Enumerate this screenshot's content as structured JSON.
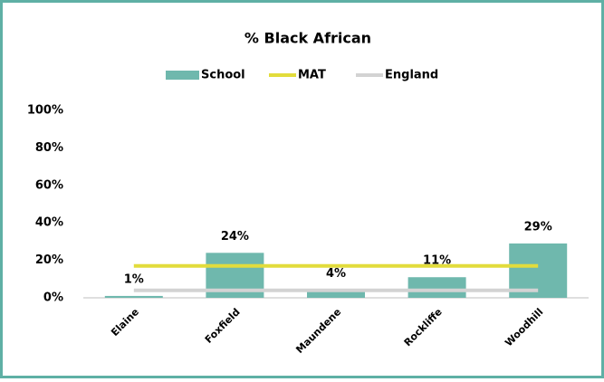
{
  "chart_data": {
    "type": "bar",
    "title": "% Black African",
    "categories": [
      "Elaine",
      "Foxfield",
      "Maundene",
      "Rockliffe",
      "Woodhill"
    ],
    "series": [
      {
        "name": "School",
        "type": "bar",
        "color": "#6fb8ad",
        "values": [
          1,
          24,
          4,
          11,
          29
        ],
        "value_labels": [
          "1%",
          "24%",
          "4%",
          "11%",
          "29%"
        ]
      },
      {
        "name": "MAT",
        "type": "line",
        "color": "#e2dc3c",
        "values": [
          17,
          17,
          17,
          17,
          17
        ]
      },
      {
        "name": "England",
        "type": "line",
        "color": "#d3d3d3",
        "values": [
          4,
          4,
          4,
          4,
          4
        ]
      }
    ],
    "ylim": [
      0,
      100
    ],
    "yticks": [
      {
        "value": 0,
        "label": "0%"
      },
      {
        "value": 20,
        "label": "20%"
      },
      {
        "value": 40,
        "label": "40%"
      },
      {
        "value": 60,
        "label": "60%"
      },
      {
        "value": 80,
        "label": "80%"
      },
      {
        "value": 100,
        "label": "100%"
      }
    ],
    "legend": "top",
    "grid": false
  }
}
